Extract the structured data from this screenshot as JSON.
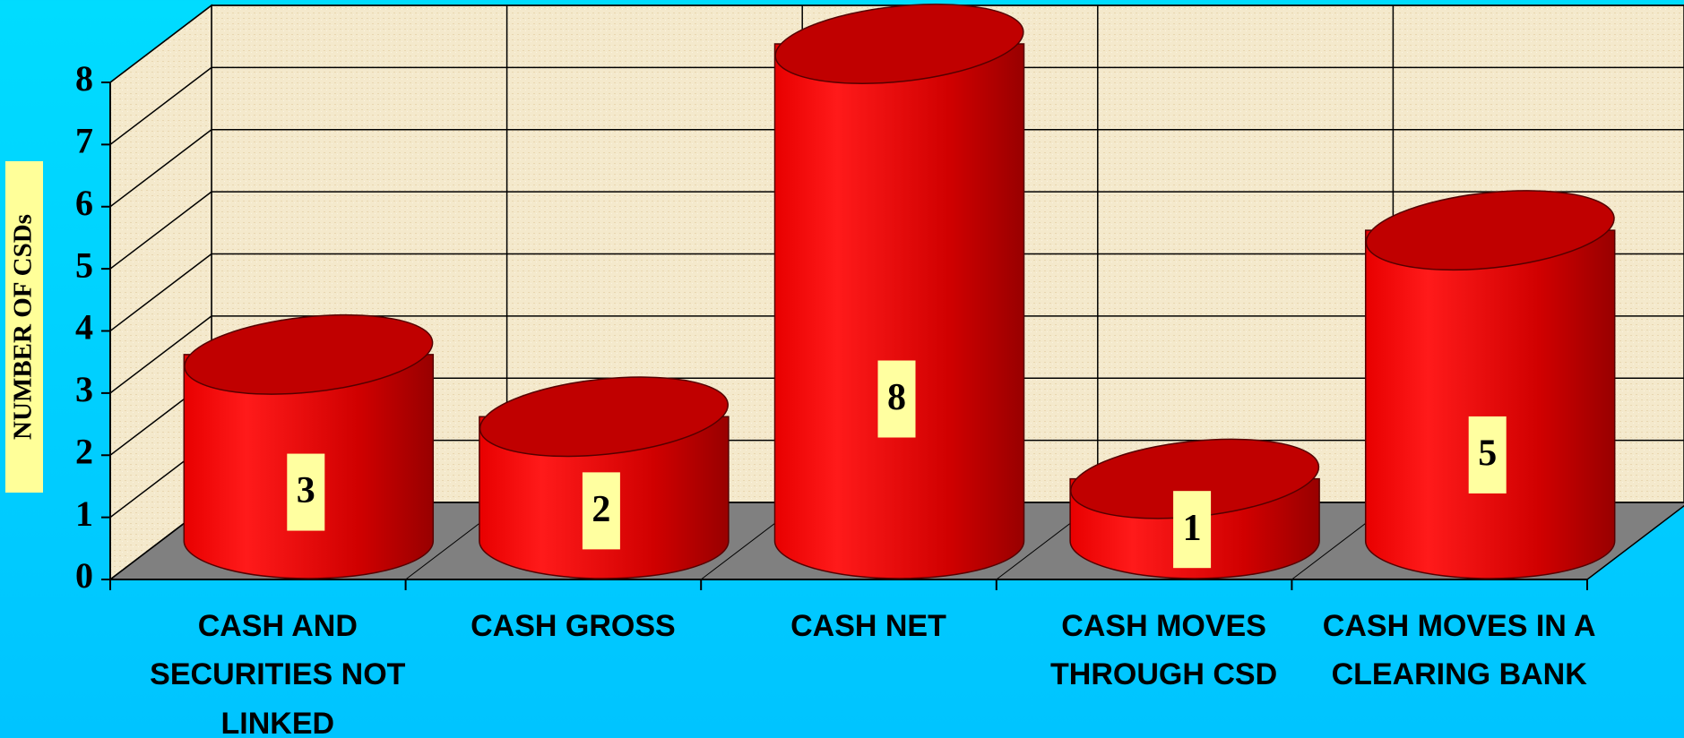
{
  "chart_data": {
    "type": "bar3d-cylinder",
    "ylabel": "NUMBER OF CSDs",
    "categories": [
      "CASH AND SECURITIES NOT LINKED",
      "CASH GROSS",
      "CASH NET",
      "CASH MOVES THROUGH CSD",
      "CASH MOVES IN A CLEARING BANK"
    ],
    "values": [
      3,
      2,
      8,
      1,
      5
    ],
    "color": "#e00000",
    "ylim": [
      0,
      8
    ],
    "yticks": [
      0,
      1,
      2,
      3,
      4,
      5,
      6,
      7,
      8
    ],
    "grid": true
  }
}
